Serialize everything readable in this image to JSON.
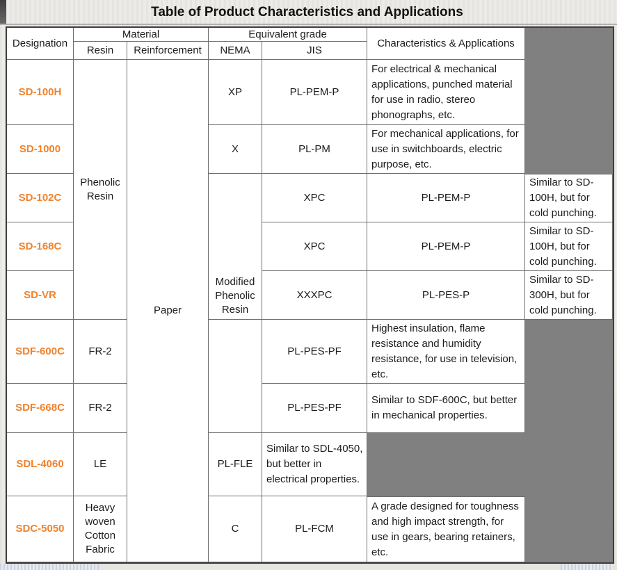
{
  "title": "Table of Product Characteristics and Applications",
  "colors": {
    "designation_orange": "#F0822D",
    "gray_block": "#808080",
    "border_gray": "#6e6e6e"
  },
  "header": {
    "designation": "Designation",
    "material": "Material",
    "resin": "Resin",
    "reinforcement": "Reinforcement",
    "equivalent_grade": "Equivalent grade",
    "nema": "NEMA",
    "jis": "JIS",
    "characteristics": "Characteristics & Applications"
  },
  "merged": {
    "resin_group": "Phenolic Resin",
    "reinforcement_group": "Paper"
  },
  "rows": [
    {
      "designation": "SD-100H",
      "nema": "XP",
      "jis": "PL-PEM-P",
      "characteristics": "For electrical & mechanical applications, punched material for use in radio, stereo phonographs, etc."
    },
    {
      "designation": "SD-1000",
      "nema": "X",
      "jis": "PL-PM",
      "characteristics": "For mechanical applications, for use in switchboards, electric purpose, etc."
    },
    {
      "designation": "SD-102C",
      "jis": "XPC",
      "characteristics": "PL-PEM-P",
      "note": "Similar to SD-100H, but for cold punching."
    },
    {
      "designation": "SD-168C",
      "jis": "XPC",
      "characteristics": "PL-PEM-P",
      "note": "Similar to SD-100H, but for cold punching."
    },
    {
      "designation": "SD-VR",
      "nema": "Modified Phenolic Resin",
      "jis": "XXXPC",
      "characteristics": "PL-PES-P",
      "note": "Similar to SD-300H, but for cold punching."
    },
    {
      "designation": "SDF-600C",
      "resin": "FR-2",
      "jis": "PL-PES-PF",
      "characteristics": "Highest insulation, flame resistance and humidity resistance, for use in television, etc."
    },
    {
      "designation": "SDF-668C",
      "resin": "FR-2",
      "jis": "PL-PES-PF",
      "characteristics": "Similar to SDF-600C, but better in mechanical properties."
    },
    {
      "designation": "SDL-4060",
      "resin": "LE",
      "nema": "PL-FLE",
      "jis": "Similar to SDL-4050, but better in electrical properties."
    },
    {
      "designation": "SDC-5050",
      "resin": "Heavy woven Cotton Fabric",
      "nema": "C",
      "jis": "PL-FCM",
      "characteristics": "A grade designed for toughness and high impact strength, for use in gears, bearing retainers, etc."
    }
  ]
}
